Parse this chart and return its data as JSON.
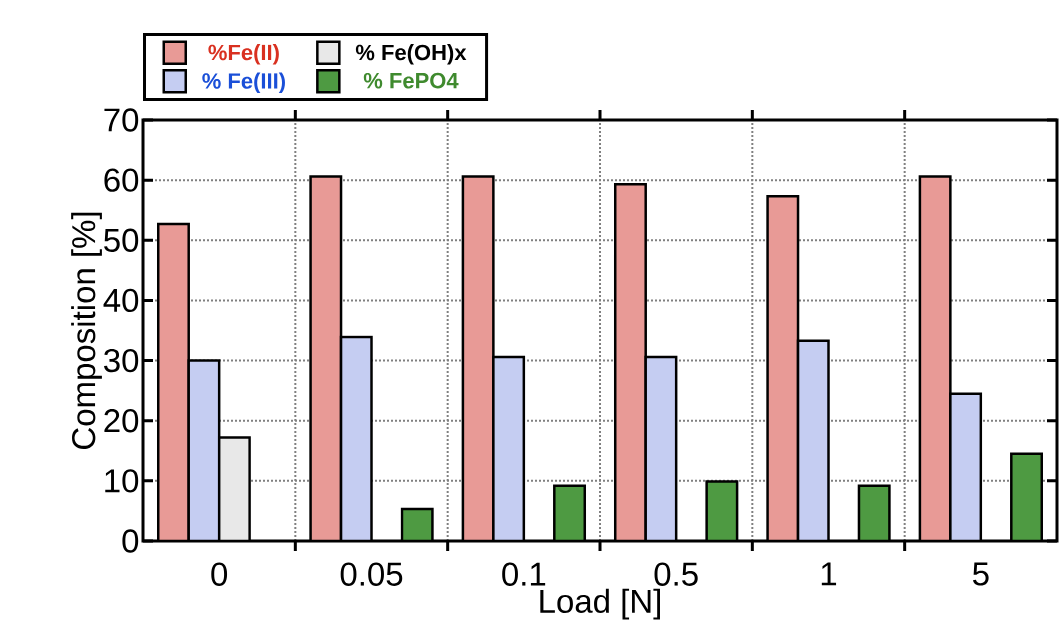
{
  "chart_data": {
    "type": "bar",
    "xlabel": "Load [N]",
    "ylabel": "Composition [%]",
    "categories": [
      "0",
      "0.05",
      "0.1",
      "0.5",
      "1",
      "5"
    ],
    "series": [
      {
        "name": "%Fe(II)",
        "color": "#e89a96",
        "values": [
          52.7,
          60.6,
          60.6,
          59.3,
          57.3,
          60.6
        ]
      },
      {
        "name": "% Fe(III)",
        "color": "#c5cdf2",
        "values": [
          30.0,
          33.9,
          30.6,
          30.6,
          33.3,
          24.5
        ]
      },
      {
        "name": "% Fe(OH)x",
        "color": "#e8e8e8",
        "values": [
          17.2,
          null,
          null,
          null,
          null,
          null
        ]
      },
      {
        "name": "% FePO4",
        "color": "#4e9a42",
        "values": [
          null,
          5.3,
          9.2,
          9.9,
          9.2,
          14.5
        ]
      }
    ],
    "ylim": [
      0,
      70
    ],
    "yticks": [
      0,
      10,
      20,
      30,
      40,
      50,
      60,
      70
    ],
    "grid": true,
    "legend": "top"
  }
}
